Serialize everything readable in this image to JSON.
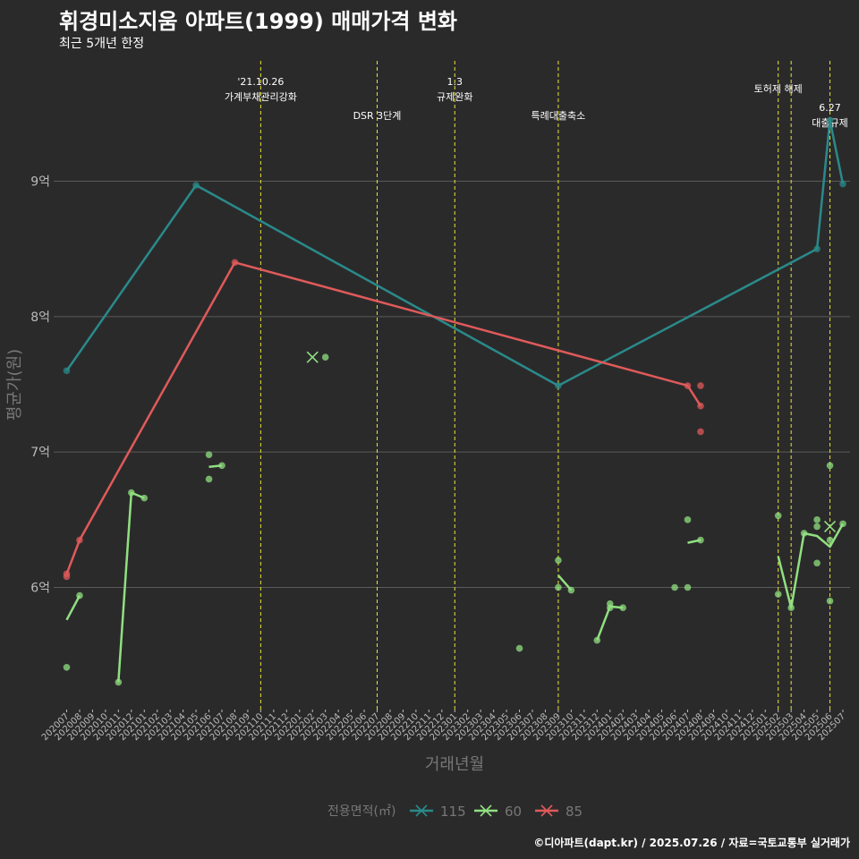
{
  "title": "휘경미소지움 아파트(1999) 매매가격 변화",
  "subtitle": "최근 5개년 한정",
  "caption": "©디아파트(dapt.kr) / 2025.07.26 / 자료=국토교통부 실거래가",
  "colors": {
    "background": "#2b2a2b",
    "grid": "#5a5a5a",
    "vline": "#e6e62e",
    "series_115": "#2a8a8a",
    "series_60": "#90e080",
    "series_85": "#e05a5a",
    "axis_text": "#bbbbbb",
    "label_dim": "#777777"
  },
  "chart_data": {
    "type": "line",
    "xlabel": "거래년월",
    "ylabel": "평균가(원)",
    "ylim": [
      5.1,
      9.9
    ],
    "x_categories": [
      "202007",
      "202008",
      "202009",
      "202010",
      "202011",
      "202012",
      "202101",
      "202102",
      "202103",
      "202104",
      "202105",
      "202106",
      "202107",
      "202108",
      "202109",
      "202110",
      "202111",
      "202112",
      "202201",
      "202202",
      "202203",
      "202204",
      "202205",
      "202206",
      "202207",
      "202208",
      "202209",
      "202210",
      "202211",
      "202212",
      "202301",
      "202302",
      "202303",
      "202304",
      "202305",
      "202306",
      "202307",
      "202308",
      "202309",
      "202310",
      "202311",
      "202312",
      "202401",
      "202402",
      "202403",
      "202404",
      "202405",
      "202406",
      "202407",
      "202408",
      "202409",
      "202410",
      "202411",
      "202412",
      "202501",
      "202502",
      "202503",
      "202504",
      "202505",
      "202506",
      "202507"
    ],
    "y_ticks": [
      {
        "value": 6,
        "label": "6억"
      },
      {
        "value": 7,
        "label": "7억"
      },
      {
        "value": 8,
        "label": "8억"
      },
      {
        "value": 9,
        "label": "9억"
      }
    ],
    "legend": {
      "title": "전용면적(㎡)",
      "position": "bottom",
      "entries": [
        "115",
        "60",
        "85"
      ]
    },
    "annotations": [
      {
        "x": "202110",
        "lines": [
          "'21.10.26",
          "가계부채관리강화"
        ],
        "level": "top"
      },
      {
        "x": "202207",
        "lines": [
          "DSR 3단계"
        ],
        "level": "low"
      },
      {
        "x": "202301",
        "lines": [
          "1.3",
          "규제완화"
        ],
        "level": "top"
      },
      {
        "x": "202309",
        "lines": [
          "특례대출축소"
        ],
        "level": "low"
      },
      {
        "x": "202502",
        "lines": [
          "토허제 해제"
        ],
        "level": "mid"
      },
      {
        "x": "202503",
        "lines": [],
        "level": "none"
      },
      {
        "x": "202506",
        "lines": [
          "6.27",
          "대출규제"
        ],
        "level": "lower"
      }
    ],
    "series": [
      {
        "name": "115",
        "line": [
          [
            "202007",
            7.6
          ],
          [
            "202105",
            8.97
          ],
          [
            "202309",
            7.49
          ],
          [
            "202505",
            8.5
          ],
          [
            "202506",
            9.45
          ],
          [
            "202507",
            8.98
          ]
        ],
        "points": [
          [
            "202007",
            7.6
          ],
          [
            "202105",
            8.97
          ],
          [
            "202309",
            7.49
          ],
          [
            "202505",
            8.5
          ],
          [
            "202506",
            9.45
          ],
          [
            "202507",
            8.98
          ]
        ],
        "cross": []
      },
      {
        "name": "60",
        "line_segments": [
          [
            [
              "202007",
              5.76
            ],
            [
              "202008",
              5.94
            ]
          ],
          [
            [
              "202011",
              5.3
            ],
            [
              "202012",
              6.7
            ],
            [
              "202101",
              6.66
            ]
          ],
          [
            [
              "202106",
              6.89
            ],
            [
              "202107",
              6.9
            ]
          ],
          [
            [
              "202309",
              6.09
            ],
            [
              "202310",
              5.98
            ]
          ],
          [
            [
              "202312",
              5.61
            ],
            [
              "202401",
              5.86
            ],
            [
              "202402",
              5.85
            ]
          ],
          [
            [
              "202407",
              6.33
            ],
            [
              "202408",
              6.35
            ]
          ],
          [
            [
              "202502",
              6.23
            ],
            [
              "202503",
              5.85
            ],
            [
              "202504",
              6.4
            ],
            [
              "202505",
              6.38
            ],
            [
              "202506",
              6.3
            ],
            [
              "202507",
              6.47
            ]
          ]
        ],
        "points": [
          [
            "202007",
            5.41
          ],
          [
            "202008",
            5.94
          ],
          [
            "202011",
            5.3
          ],
          [
            "202012",
            6.7
          ],
          [
            "202101",
            6.66
          ],
          [
            "202106",
            6.98
          ],
          [
            "202106",
            6.8
          ],
          [
            "202107",
            6.9
          ],
          [
            "202203",
            7.7
          ],
          [
            "202306",
            5.55
          ],
          [
            "202309",
            6.2
          ],
          [
            "202309",
            6.0
          ],
          [
            "202310",
            5.98
          ],
          [
            "202312",
            5.61
          ],
          [
            "202401",
            5.88
          ],
          [
            "202401",
            5.85
          ],
          [
            "202402",
            5.85
          ],
          [
            "202406",
            6.0
          ],
          [
            "202407",
            6.5
          ],
          [
            "202407",
            6.0
          ],
          [
            "202408",
            6.35
          ],
          [
            "202502",
            6.53
          ],
          [
            "202502",
            5.95
          ],
          [
            "202503",
            5.85
          ],
          [
            "202504",
            6.4
          ],
          [
            "202505",
            6.5
          ],
          [
            "202505",
            6.45
          ],
          [
            "202505",
            6.18
          ],
          [
            "202506",
            6.9
          ],
          [
            "202506",
            6.35
          ],
          [
            "202506",
            5.9
          ],
          [
            "202507",
            6.47
          ]
        ],
        "cross": [
          [
            "202202",
            7.7
          ],
          [
            "202506",
            6.45
          ]
        ]
      },
      {
        "name": "85",
        "line": [
          [
            "202007",
            6.1
          ],
          [
            "202008",
            6.35
          ],
          [
            "202108",
            8.4
          ],
          [
            "202407",
            7.49
          ],
          [
            "202408",
            7.34
          ]
        ],
        "points": [
          [
            "202007",
            6.1
          ],
          [
            "202007",
            6.08
          ],
          [
            "202008",
            6.35
          ],
          [
            "202108",
            8.4
          ],
          [
            "202407",
            7.49
          ],
          [
            "202408",
            7.49
          ],
          [
            "202408",
            7.34
          ],
          [
            "202408",
            7.15
          ]
        ],
        "cross": []
      }
    ]
  }
}
